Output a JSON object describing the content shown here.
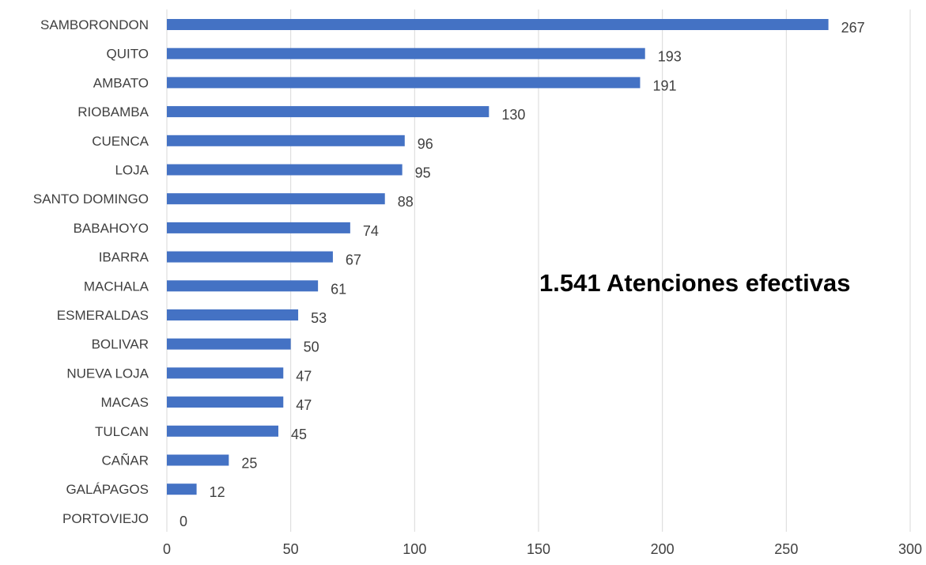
{
  "chart_data": {
    "type": "bar",
    "orientation": "horizontal",
    "categories": [
      "SAMBORONDON",
      "QUITO",
      "AMBATO",
      "RIOBAMBA",
      "CUENCA",
      "LOJA",
      "SANTO DOMINGO",
      "BABAHOYO",
      "IBARRA",
      "MACHALA",
      "ESMERALDAS",
      "BOLIVAR",
      "NUEVA LOJA",
      "MACAS",
      "TULCAN",
      "CAÑAR",
      "GALÁPAGOS",
      "PORTOVIEJO"
    ],
    "values": [
      267,
      193,
      191,
      130,
      96,
      95,
      88,
      74,
      67,
      61,
      53,
      50,
      47,
      47,
      45,
      25,
      12,
      0
    ],
    "xlim": [
      0,
      300
    ],
    "xticks": [
      0,
      50,
      100,
      150,
      200,
      250,
      300
    ],
    "grid": "vertical",
    "bar_color": "#4472C4",
    "annotation": "1.541 Atenciones efectivas"
  }
}
